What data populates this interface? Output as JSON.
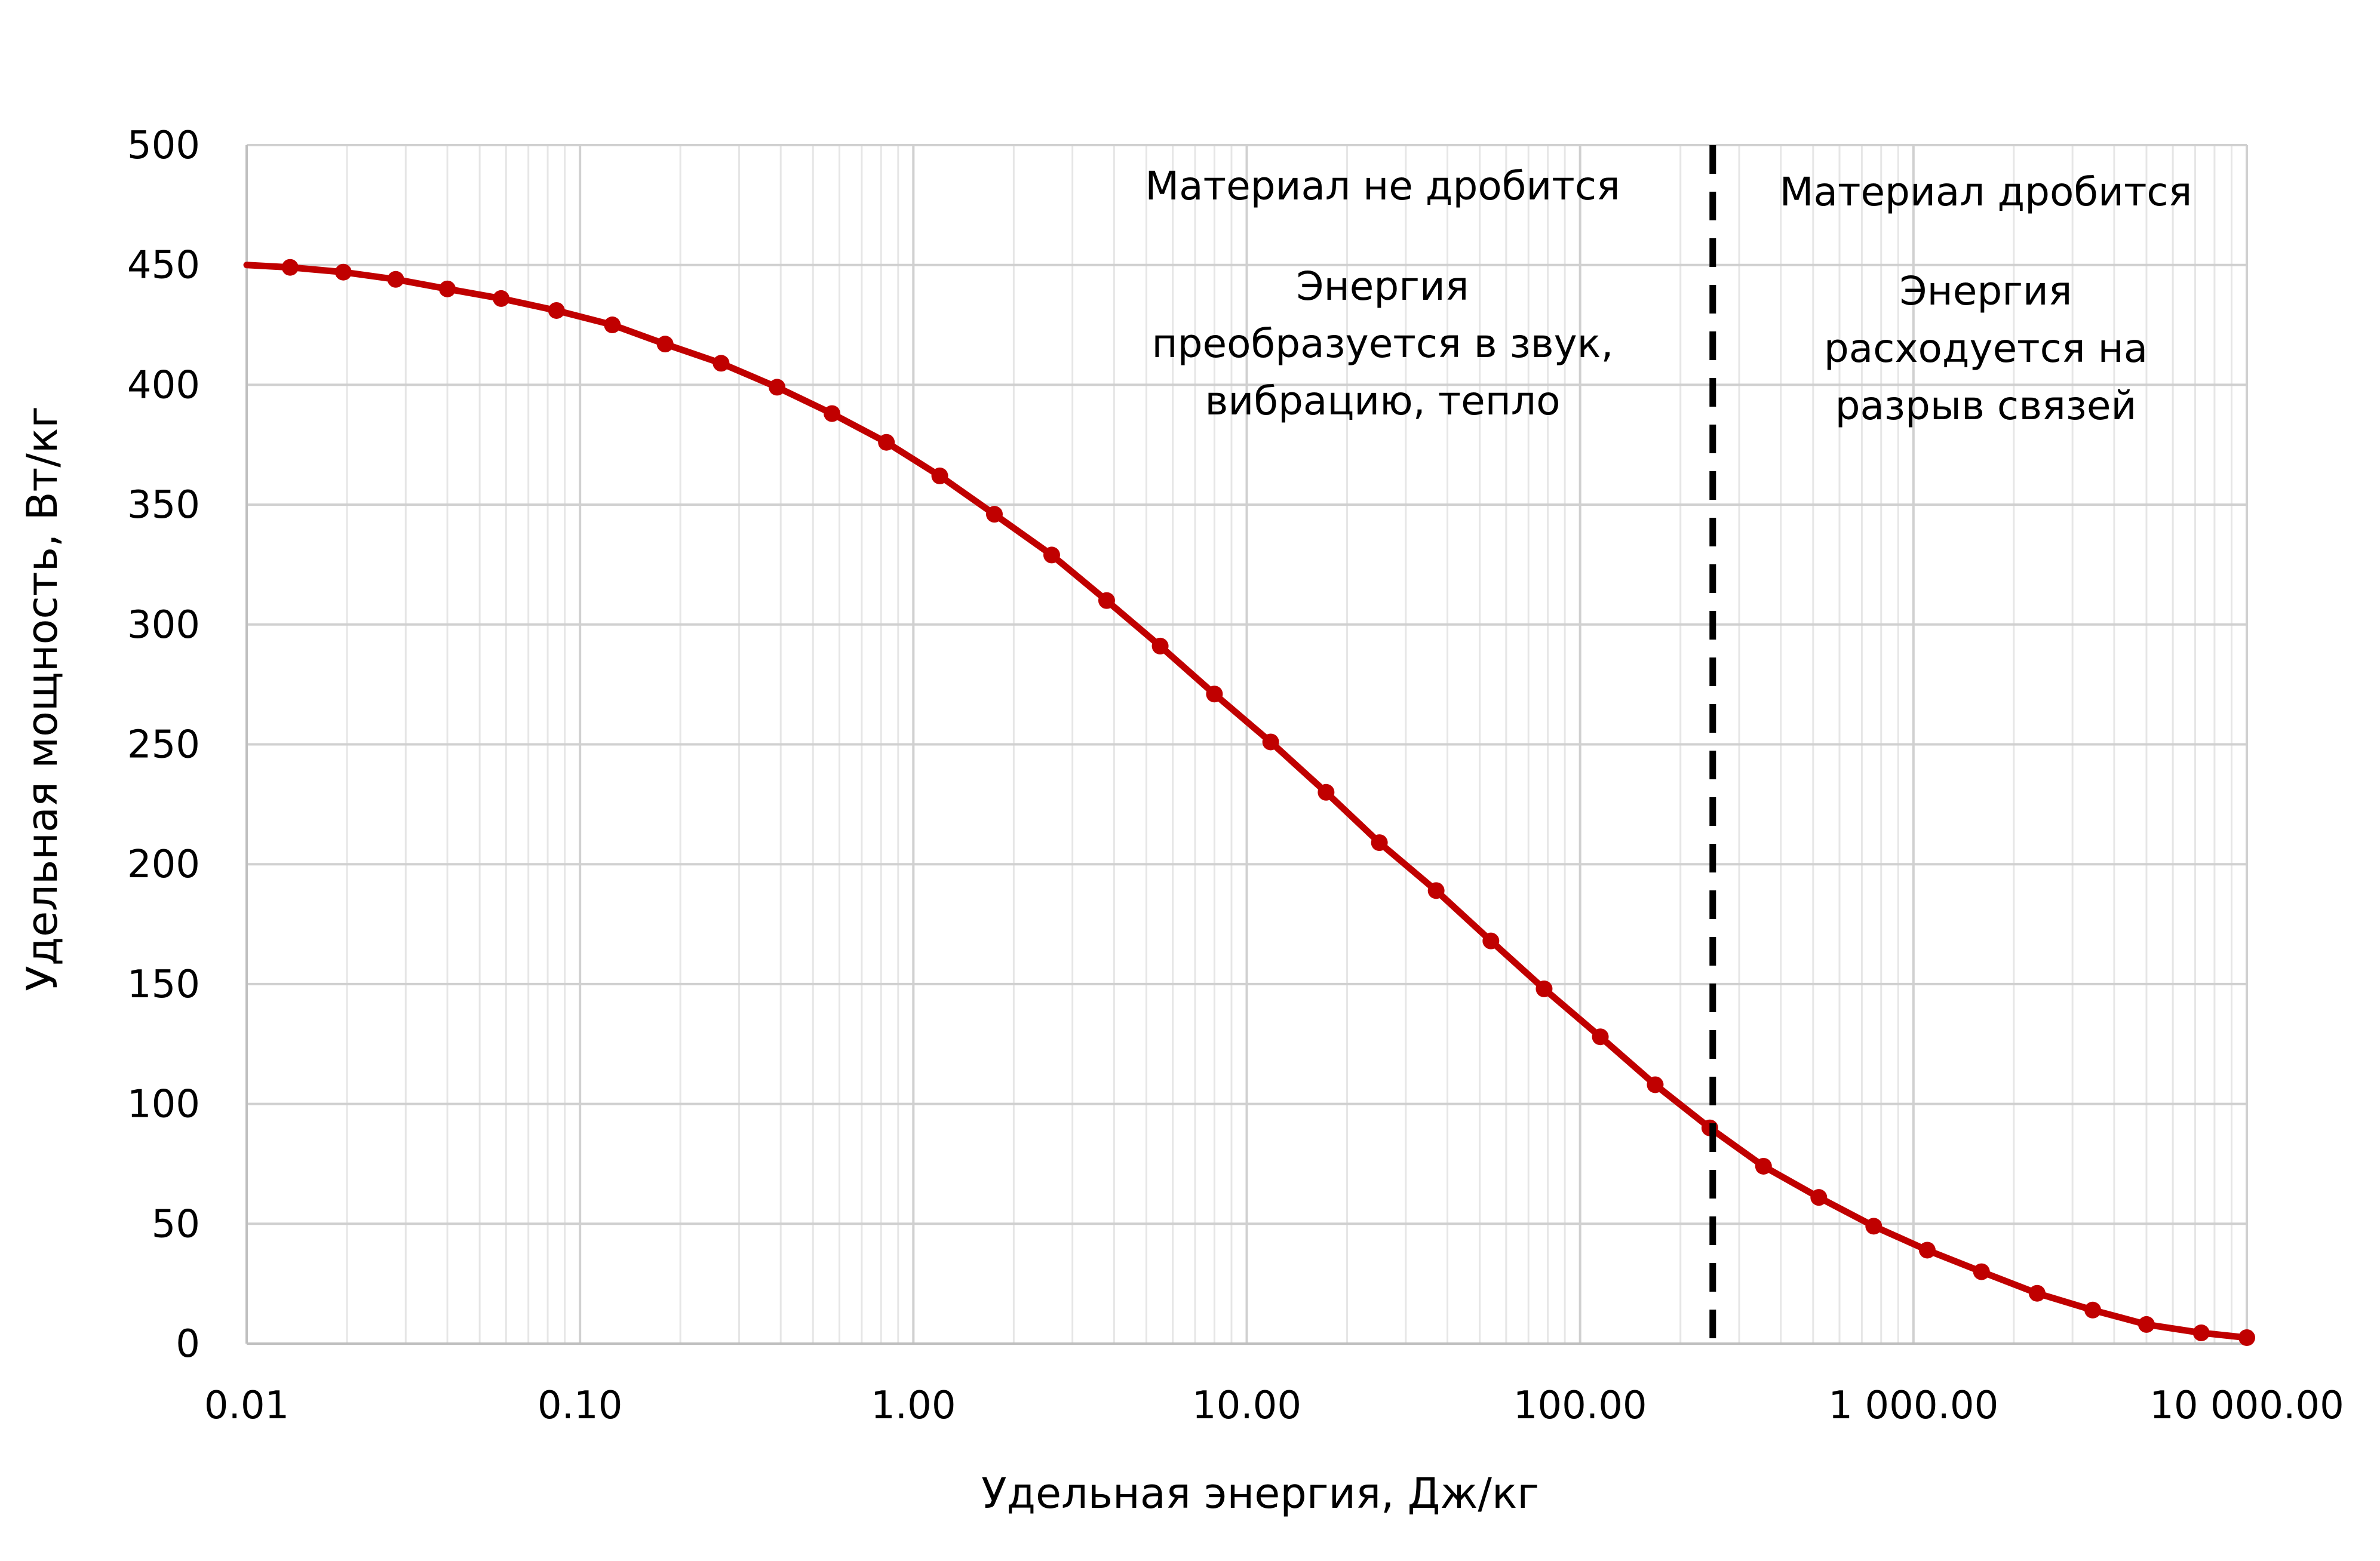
{
  "chart_data": {
    "type": "line",
    "x_scale": "log",
    "xlim": [
      0.01,
      10000
    ],
    "ylim": [
      0,
      500
    ],
    "grid": true,
    "xlabel": "Удельная энергия, Дж/кг",
    "ylabel": "Удельная мощность, Вт/кг",
    "x_ticks": [
      0.01,
      0.1,
      1,
      10,
      100,
      1000,
      10000
    ],
    "x_tick_labels": [
      "0.01",
      "0.10",
      "1.00",
      "10.00",
      "100.00",
      "1 000.00",
      "10 000.00"
    ],
    "y_ticks": [
      0,
      50,
      100,
      150,
      200,
      250,
      300,
      350,
      400,
      450,
      500
    ],
    "y_tick_labels": [
      "0",
      "50",
      "100",
      "150",
      "200",
      "250",
      "300",
      "350",
      "400",
      "450",
      "500"
    ],
    "threshold_x": 250,
    "series": [
      {
        "color": "#c00000",
        "x": [
          0.01,
          0.0135,
          0.0195,
          0.028,
          0.04,
          0.058,
          0.085,
          0.125,
          0.18,
          0.265,
          0.39,
          0.57,
          0.83,
          1.2,
          1.75,
          2.6,
          3.8,
          5.5,
          8,
          11.8,
          17.3,
          25,
          37,
          54,
          78,
          115,
          168,
          245,
          355,
          520,
          760,
          1100,
          1600,
          2350,
          3450,
          5000,
          7300,
          10000
        ],
        "y": [
          450,
          449,
          447,
          444,
          440,
          436,
          431,
          425,
          417,
          409,
          399,
          388,
          376,
          362,
          346,
          329,
          310,
          291,
          271,
          251,
          230,
          209,
          189,
          168,
          148,
          128,
          108,
          90,
          74,
          61,
          49,
          39,
          30,
          21,
          14,
          8,
          4.5,
          2.5
        ]
      }
    ],
    "annotations": {
      "left_title": "Материал не дробится",
      "left_body": [
        "Энергия",
        "преобразуется в звук,",
        "вибрацию, тепло"
      ],
      "right_title": "Материал дробится",
      "right_body": [
        "Энергия",
        "расходуется на",
        "разрыв связей"
      ]
    }
  }
}
